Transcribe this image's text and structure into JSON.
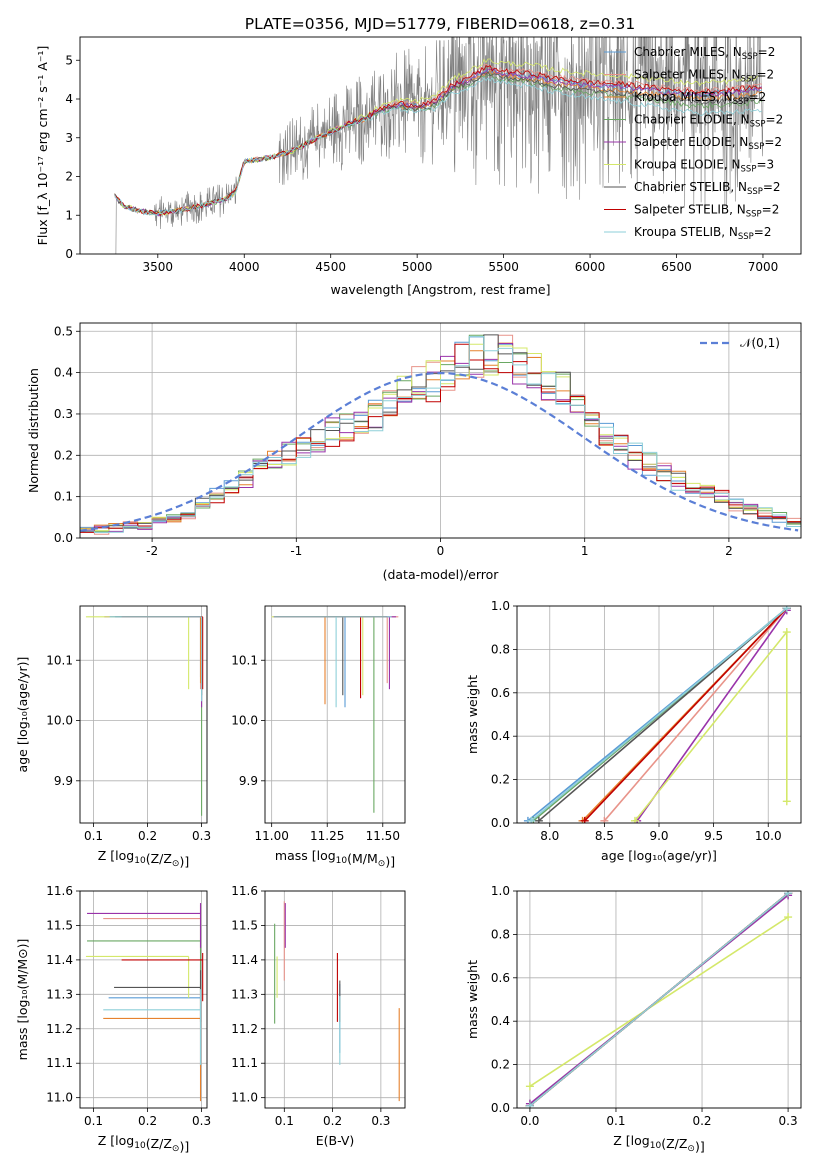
{
  "figure_title": "PLATE=0356, MJD=51779, FIBERID=0618, z=0.31",
  "series_colors": [
    "#5a9bd5",
    "#e8948a",
    "#e6822e",
    "#6aa863",
    "#9933aa",
    "#d4e86a",
    "#555555",
    "#c00000",
    "#8ecfd8"
  ],
  "chart_data": [
    {
      "id": "spectrum",
      "type": "line",
      "xlabel": "wavelength [Angstrom, rest frame]",
      "ylabel": "Flux [f_λ 10⁻¹⁷ erg cm⁻² s⁻¹ A⁻¹]",
      "xlim": [
        3050,
        7220
      ],
      "ylim": [
        0,
        5.6
      ],
      "xticks": [
        3500,
        4000,
        4500,
        5000,
        5500,
        6000,
        6500,
        7000
      ],
      "yticks": [
        0,
        1,
        2,
        3,
        4,
        5
      ],
      "grid": false,
      "legend_position": "upper right",
      "data_color": "#808080",
      "data_x_range": [
        3250,
        7000
      ],
      "series": [
        {
          "name": "Chabrier MILES, N_SSP=2",
          "label_main": "Chabrier MILES, N",
          "label_sub": "SSP",
          "label_tail": "=2"
        },
        {
          "name": "Salpeter MILES, N_SSP=2",
          "label_main": "Salpeter MILES, N",
          "label_sub": "SSP",
          "label_tail": "=2"
        },
        {
          "name": "Kroupa MILES, N_SSP=2",
          "label_main": "Kroupa MILES, N",
          "label_sub": "SSP",
          "label_tail": "=2"
        },
        {
          "name": "Chabrier ELODIE, N_SSP=2",
          "label_main": "Chabrier ELODIE, N",
          "label_sub": "SSP",
          "label_tail": "=2"
        },
        {
          "name": "Salpeter ELODIE, N_SSP=2",
          "label_main": "Salpeter ELODIE, N",
          "label_sub": "SSP",
          "label_tail": "=2"
        },
        {
          "name": "Kroupa ELODIE, N_SSP=3",
          "label_main": "Kroupa ELODIE, N",
          "label_sub": "SSP",
          "label_tail": "=3"
        },
        {
          "name": "Chabrier STELIB, N_SSP=2",
          "label_main": "Chabrier STELIB, N",
          "label_sub": "SSP",
          "label_tail": "=2"
        },
        {
          "name": "Salpeter STELIB, N_SSP=2",
          "label_main": "Salpeter STELIB, N",
          "label_sub": "SSP",
          "label_tail": "=2"
        },
        {
          "name": "Kroupa STELIB, N_SSP=2",
          "label_main": "Kroupa STELIB, N",
          "label_sub": "SSP",
          "label_tail": "=2"
        }
      ],
      "model_shape": {
        "x": [
          3250,
          3300,
          3400,
          3500,
          3600,
          3700,
          3800,
          3900,
          3950,
          4000,
          4100,
          4200,
          4300,
          4400,
          4500,
          4600,
          4700,
          4800,
          4900,
          5000,
          5100,
          5200,
          5300,
          5400,
          5500,
          5600,
          5700,
          5800,
          5900,
          6000,
          6200,
          6400,
          6600,
          6800,
          7000
        ],
        "y": [
          1.5,
          1.25,
          1.1,
          1.05,
          1.1,
          1.2,
          1.3,
          1.45,
          1.6,
          2.4,
          2.45,
          2.55,
          2.7,
          2.95,
          3.15,
          3.35,
          3.5,
          3.75,
          3.85,
          3.8,
          3.9,
          4.3,
          4.5,
          4.75,
          4.65,
          4.6,
          4.55,
          4.45,
          4.4,
          4.35,
          4.3,
          4.2,
          4.1,
          4.15,
          4.25
        ]
      }
    },
    {
      "id": "residuals",
      "type": "line",
      "xlabel": "(data-model)/error",
      "ylabel": "Normed distribution",
      "xlim": [
        -2.5,
        2.5
      ],
      "ylim": [
        0,
        0.52
      ],
      "xticks": [
        -2,
        -1,
        0,
        1,
        2
      ],
      "yticks": [
        0.0,
        0.1,
        0.2,
        0.3,
        0.4,
        0.5
      ],
      "grid": true,
      "legend_position": "upper right",
      "legend_label": "𝒩(0,1)",
      "gauss_color": "#5b7fd6",
      "bin_edges": [
        -2.5,
        -2.4,
        -2.3,
        -2.2,
        -2.1,
        -2.0,
        -1.9,
        -1.8,
        -1.7,
        -1.6,
        -1.5,
        -1.4,
        -1.3,
        -1.2,
        -1.1,
        -1.0,
        -0.9,
        -0.8,
        -0.7,
        -0.6,
        -0.5,
        -0.4,
        -0.3,
        -0.2,
        -0.1,
        0.0,
        0.1,
        0.2,
        0.3,
        0.4,
        0.5,
        0.6,
        0.7,
        0.8,
        0.9,
        1.0,
        1.1,
        1.2,
        1.3,
        1.4,
        1.5,
        1.6,
        1.7,
        1.8,
        1.9,
        2.0,
        2.1,
        2.2,
        2.3,
        2.4,
        2.5
      ],
      "hist_values": [
        0.02,
        0.02,
        0.025,
        0.03,
        0.03,
        0.04,
        0.045,
        0.06,
        0.08,
        0.1,
        0.12,
        0.14,
        0.17,
        0.19,
        0.2,
        0.22,
        0.24,
        0.26,
        0.27,
        0.28,
        0.3,
        0.33,
        0.36,
        0.37,
        0.38,
        0.4,
        0.43,
        0.44,
        0.45,
        0.44,
        0.42,
        0.4,
        0.38,
        0.35,
        0.32,
        0.29,
        0.26,
        0.23,
        0.2,
        0.18,
        0.16,
        0.14,
        0.12,
        0.11,
        0.1,
        0.08,
        0.07,
        0.06,
        0.05,
        0.04
      ]
    },
    {
      "id": "age_vs_Z",
      "type": "errorbar",
      "xlabel_main": "Z [log",
      "xlabel_sub": "10",
      "xlabel_tail": "(Z/Z",
      "xlabel_sun": "⊙",
      "xlabel_end": ")]",
      "ylabel": "age  [log₁₀(age/yr)]",
      "xlim": [
        0.075,
        0.31
      ],
      "ylim": [
        9.83,
        10.19
      ],
      "xticks": [
        0.1,
        0.2,
        0.3
      ],
      "yticks": [
        9.9,
        10.0,
        10.1
      ],
      "grid": true,
      "points": [
        {
          "x": 0.298,
          "y": 10.172,
          "xerr": [
            0.16,
            0.0
          ],
          "yerr": [
            0.1,
            0.0
          ],
          "c": 0
        },
        {
          "x": 0.298,
          "y": 10.172,
          "xerr": [
            0.14,
            0.0
          ],
          "yerr": [
            0.12,
            0.0
          ],
          "c": 1
        },
        {
          "x": 0.298,
          "y": 10.172,
          "xerr": [
            0.15,
            0.0
          ],
          "yerr": [
            0.11,
            0.0
          ],
          "c": 2
        },
        {
          "x": 0.3,
          "y": 10.172,
          "xerr": [
            0.17,
            0.0
          ],
          "yerr": [
            0.33,
            0.0
          ],
          "c": 3
        },
        {
          "x": 0.3,
          "y": 10.172,
          "xerr": [
            0.18,
            0.0
          ],
          "yerr": [
            0.15,
            0.0
          ],
          "c": 4
        },
        {
          "x": 0.276,
          "y": 10.172,
          "xerr": [
            0.19,
            0.0
          ],
          "yerr": [
            0.12,
            0.0
          ],
          "c": 5
        },
        {
          "x": 0.3,
          "y": 10.172,
          "xerr": [
            0.16,
            0.0
          ],
          "yerr": [
            0.13,
            0.0
          ],
          "c": 6
        },
        {
          "x": 0.302,
          "y": 10.172,
          "xerr": [
            0.15,
            0.0
          ],
          "yerr": [
            0.12,
            0.0
          ],
          "c": 7
        },
        {
          "x": 0.3,
          "y": 10.172,
          "xerr": [
            0.17,
            0.0
          ],
          "yerr": [
            0.14,
            0.0
          ],
          "c": 8
        }
      ]
    },
    {
      "id": "age_vs_mass",
      "type": "errorbar",
      "xlabel_main": "mass [log",
      "xlabel_sub": "10",
      "xlabel_tail": "(M/M",
      "xlabel_sun": "⊙",
      "xlabel_end": ")]",
      "xlim": [
        10.97,
        11.6
      ],
      "ylim": [
        9.83,
        10.19
      ],
      "xticks": [
        11.0,
        11.25,
        11.5
      ],
      "xtick_labels": [
        "11.00",
        "11.25",
        "11.50"
      ],
      "yticks": [
        9.9,
        10.0,
        10.1
      ],
      "grid": true,
      "points": [
        {
          "x": 11.33,
          "y": 10.172,
          "xerr": [
            0.3,
            0.2
          ],
          "yerr": [
            0.15,
            0.0
          ],
          "c": 0
        },
        {
          "x": 11.52,
          "y": 10.172,
          "xerr": [
            0.5,
            0.05
          ],
          "yerr": [
            0.11,
            0.0
          ],
          "c": 1
        },
        {
          "x": 11.24,
          "y": 10.172,
          "xerr": [
            0.23,
            0.28
          ],
          "yerr": [
            0.145,
            0.0
          ],
          "c": 2
        },
        {
          "x": 11.46,
          "y": 10.172,
          "xerr": [
            0.45,
            0.06
          ],
          "yerr": [
            0.325,
            0.0
          ],
          "c": 3
        },
        {
          "x": 11.53,
          "y": 10.172,
          "xerr": [
            0.52,
            0.03
          ],
          "yerr": [
            0.12,
            0.0
          ],
          "c": 4
        },
        {
          "x": 11.41,
          "y": 10.172,
          "xerr": [
            0.41,
            0.1
          ],
          "yerr": [
            0.13,
            0.0
          ],
          "c": 5
        },
        {
          "x": 11.32,
          "y": 10.172,
          "xerr": [
            0.31,
            0.2
          ],
          "yerr": [
            0.13,
            0.0
          ],
          "c": 6
        },
        {
          "x": 11.4,
          "y": 10.172,
          "xerr": [
            0.39,
            0.12
          ],
          "yerr": [
            0.135,
            0.0
          ],
          "c": 7
        },
        {
          "x": 11.29,
          "y": 10.172,
          "xerr": [
            0.28,
            0.25
          ],
          "yerr": [
            0.15,
            0.0
          ],
          "c": 8
        }
      ]
    },
    {
      "id": "mass_weight_vs_age",
      "type": "line",
      "xlabel": "age  [log₁₀(age/yr)]",
      "ylabel": "mass weight",
      "xlim": [
        7.7,
        10.3
      ],
      "ylim": [
        0,
        1
      ],
      "xticks": [
        8.0,
        8.5,
        9.0,
        9.5,
        10.0
      ],
      "yticks": [
        0.0,
        0.2,
        0.4,
        0.6,
        0.8,
        1.0
      ],
      "grid": true,
      "series": [
        {
          "x": [
            7.8,
            10.17
          ],
          "y": [
            0.01,
            0.99
          ],
          "c": 0
        },
        {
          "x": [
            8.5,
            10.17
          ],
          "y": [
            0.01,
            0.99
          ],
          "c": 1
        },
        {
          "x": [
            8.3,
            10.17
          ],
          "y": [
            0.01,
            0.99
          ],
          "c": 2
        },
        {
          "x": [
            7.85,
            10.17
          ],
          "y": [
            0.01,
            0.99
          ],
          "c": 3
        },
        {
          "x": [
            8.8,
            10.17
          ],
          "y": [
            0.01,
            0.98
          ],
          "c": 4
        },
        {
          "x": [
            8.78,
            10.17,
            10.17
          ],
          "y": [
            0.01,
            0.88,
            0.1
          ],
          "c": 5
        },
        {
          "x": [
            7.9,
            10.17
          ],
          "y": [
            0.01,
            0.99
          ],
          "c": 6
        },
        {
          "x": [
            8.32,
            10.17
          ],
          "y": [
            0.01,
            0.99
          ],
          "c": 7
        },
        {
          "x": [
            7.83,
            10.17
          ],
          "y": [
            0.01,
            0.99
          ],
          "c": 8
        }
      ]
    },
    {
      "id": "mass_vs_Z",
      "type": "errorbar",
      "xlabel_main": "Z [log",
      "xlabel_sub": "10",
      "xlabel_tail": "(Z/Z",
      "xlabel_sun": "⊙",
      "xlabel_end": ")]",
      "ylabel": "mass [log₁₀(M/M⊙)]",
      "xlim": [
        0.075,
        0.31
      ],
      "ylim": [
        10.97,
        11.6
      ],
      "xticks": [
        0.1,
        0.2,
        0.3
      ],
      "yticks": [
        11.0,
        11.1,
        11.2,
        11.3,
        11.4,
        11.5,
        11.6
      ],
      "grid": true,
      "points": [
        {
          "x": 0.298,
          "y": 11.29,
          "xerr": [
            0.17,
            0.0
          ],
          "yerr": [
            0.2,
            0.1
          ],
          "c": 0
        },
        {
          "x": 0.298,
          "y": 11.52,
          "xerr": [
            0.18,
            0.0
          ],
          "yerr": [
            0.1,
            0.04
          ],
          "c": 1
        },
        {
          "x": 0.298,
          "y": 11.23,
          "xerr": [
            0.18,
            0.0
          ],
          "yerr": [
            0.24,
            0.1
          ],
          "c": 2
        },
        {
          "x": 0.298,
          "y": 11.455,
          "xerr": [
            0.21,
            0.0
          ],
          "yerr": [
            0.15,
            0.05
          ],
          "c": 3
        },
        {
          "x": 0.298,
          "y": 11.535,
          "xerr": [
            0.21,
            0.0
          ],
          "yerr": [
            0.1,
            0.03
          ],
          "c": 4
        },
        {
          "x": 0.276,
          "y": 11.41,
          "xerr": [
            0.19,
            0.0
          ],
          "yerr": [
            0.12,
            0.0
          ],
          "c": 5
        },
        {
          "x": 0.298,
          "y": 11.32,
          "xerr": [
            0.16,
            0.0
          ],
          "yerr": [
            0.1,
            0.05
          ],
          "c": 6
        },
        {
          "x": 0.302,
          "y": 11.4,
          "xerr": [
            0.15,
            0.0
          ],
          "yerr": [
            0.12,
            0.02
          ],
          "c": 7
        },
        {
          "x": 0.298,
          "y": 11.255,
          "xerr": [
            0.18,
            0.0
          ],
          "yerr": [
            0.16,
            0.06
          ],
          "c": 8
        }
      ]
    },
    {
      "id": "mass_vs_ebv",
      "type": "errorbar",
      "xlabel": "E(B-V)",
      "xlim": [
        0.06,
        0.35
      ],
      "ylim": [
        10.97,
        11.6
      ],
      "xticks": [
        0.1,
        0.2,
        0.3
      ],
      "yticks": [
        11.0,
        11.1,
        11.2,
        11.3,
        11.4,
        11.5,
        11.6
      ],
      "grid": true,
      "points": [
        {
          "x": 0.215,
          "y": 11.29,
          "xerr": [
            0.0,
            0.0
          ],
          "yerr": [
            0.16,
            0.04
          ],
          "c": 0
        },
        {
          "x": 0.1,
          "y": 11.52,
          "xerr": [
            0.0,
            0.0
          ],
          "yerr": [
            0.18,
            0.05
          ],
          "c": 1
        },
        {
          "x": 0.338,
          "y": 11.23,
          "xerr": [
            0.0,
            0.0
          ],
          "yerr": [
            0.24,
            0.03
          ],
          "c": 2
        },
        {
          "x": 0.08,
          "y": 11.455,
          "xerr": [
            0.0,
            0.0
          ],
          "yerr": [
            0.24,
            0.05
          ],
          "c": 3
        },
        {
          "x": 0.102,
          "y": 11.535,
          "xerr": [
            0.0,
            0.0
          ],
          "yerr": [
            0.1,
            0.03
          ],
          "c": 4
        },
        {
          "x": 0.085,
          "y": 11.41,
          "xerr": [
            0.0,
            0.0
          ],
          "yerr": [
            0.12,
            0.0
          ],
          "c": 5
        },
        {
          "x": 0.215,
          "y": 11.32,
          "xerr": [
            0.0,
            0.0
          ],
          "yerr": [
            0.1,
            0.02
          ],
          "c": 6
        },
        {
          "x": 0.21,
          "y": 11.4,
          "xerr": [
            0.0,
            0.0
          ],
          "yerr": [
            0.18,
            0.02
          ],
          "c": 7
        },
        {
          "x": 0.215,
          "y": 11.255,
          "xerr": [
            0.0,
            0.0
          ],
          "yerr": [
            0.16,
            0.04
          ],
          "c": 8
        }
      ]
    },
    {
      "id": "mass_weight_vs_Z",
      "type": "line",
      "xlabel_main": "Z [log",
      "xlabel_sub": "10",
      "xlabel_tail": "(Z/Z",
      "xlabel_sun": "⊙",
      "xlabel_end": ")]",
      "ylabel": "mass weight",
      "xlim": [
        -0.015,
        0.315
      ],
      "ylim": [
        0,
        1
      ],
      "xticks": [
        0.0,
        0.1,
        0.2,
        0.3
      ],
      "yticks": [
        0.0,
        0.2,
        0.4,
        0.6,
        0.8,
        1.0
      ],
      "grid": true,
      "series": [
        {
          "x": [
            0.0,
            0.3
          ],
          "y": [
            0.01,
            0.99
          ],
          "c": 0
        },
        {
          "x": [
            0.0,
            0.3
          ],
          "y": [
            0.01,
            0.99
          ],
          "c": 1
        },
        {
          "x": [
            0.0,
            0.3
          ],
          "y": [
            0.01,
            0.99
          ],
          "c": 2
        },
        {
          "x": [
            0.0,
            0.3
          ],
          "y": [
            0.01,
            0.99
          ],
          "c": 3
        },
        {
          "x": [
            0.0,
            0.3
          ],
          "y": [
            0.02,
            0.98
          ],
          "c": 4
        },
        {
          "x": [
            0.0,
            0.3
          ],
          "y": [
            0.1,
            0.88
          ],
          "c": 5
        },
        {
          "x": [
            0.0,
            0.3
          ],
          "y": [
            0.01,
            0.99
          ],
          "c": 6
        },
        {
          "x": [
            0.0,
            0.3
          ],
          "y": [
            0.01,
            0.99
          ],
          "c": 7
        },
        {
          "x": [
            0.0,
            0.3
          ],
          "y": [
            0.01,
            0.99
          ],
          "c": 8
        }
      ]
    }
  ]
}
